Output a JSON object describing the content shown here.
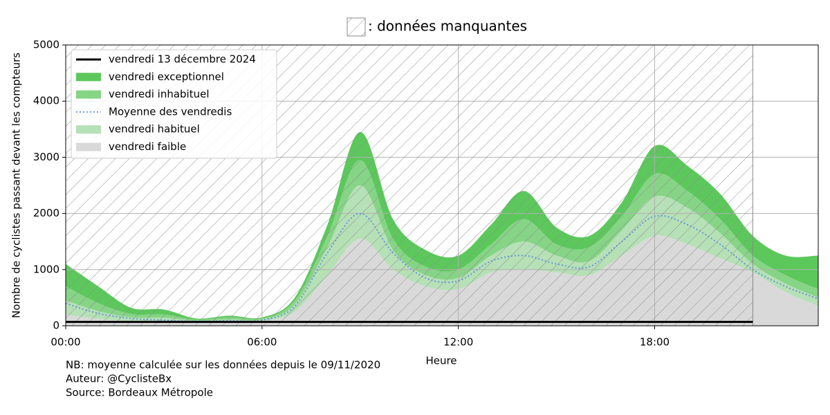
{
  "chart_data": {
    "type": "band",
    "missing": {
      "label": ": données manquantes",
      "x": [
        0,
        21
      ]
    },
    "xlabel": "Heure",
    "ylabel": "Nombre de cyclistes passant devant les compteurs",
    "annotations": [
      "NB: moyenne calculée sur les données depuis le 09/11/2020",
      "Auteur: @CyclisteBx",
      "Source: Bordeaux Métropole"
    ],
    "x": [
      0,
      1,
      2,
      3,
      4,
      5,
      6,
      7,
      8,
      9,
      10,
      11,
      12,
      13,
      14,
      15,
      16,
      17,
      18,
      19,
      20,
      21,
      22,
      23
    ],
    "xlim": [
      0,
      23
    ],
    "xticks": [
      {
        "value": 0,
        "label": "00:00"
      },
      {
        "value": 6,
        "label": "06:00"
      },
      {
        "value": 12,
        "label": "12:00"
      },
      {
        "value": 18,
        "label": "18:00"
      }
    ],
    "ylim": [
      0,
      5000
    ],
    "yticks": [
      0,
      1000,
      2000,
      3000,
      4000,
      5000
    ],
    "grid": true,
    "legend": "upper left",
    "series": [
      {
        "name": "vendredi 13 décembre 2024",
        "style": "line",
        "color": "#000000",
        "x": [
          0,
          21
        ],
        "values": [
          70,
          70
        ]
      },
      {
        "name": "vendredi exceptionnel",
        "style": "band",
        "color": "#5cc85c",
        "values": [
          1100,
          700,
          320,
          290,
          130,
          180,
          150,
          500,
          1800,
          3450,
          1900,
          1350,
          1250,
          1800,
          2400,
          1750,
          1600,
          2200,
          3200,
          2850,
          2350,
          1600,
          1250,
          1250
        ]
      },
      {
        "name": "vendredi inhabituel",
        "style": "band",
        "color": "#86d486",
        "values": [
          700,
          400,
          210,
          200,
          110,
          150,
          130,
          450,
          1600,
          2950,
          1550,
          1050,
          1000,
          1450,
          1900,
          1450,
          1400,
          1950,
          2700,
          2400,
          1900,
          1250,
          900,
          650
        ]
      },
      {
        "name": "Moyenne des vendredis",
        "style": "dotted",
        "color": "#5b8fe0",
        "values": [
          400,
          220,
          130,
          100,
          80,
          90,
          100,
          350,
          1300,
          2000,
          1300,
          850,
          800,
          1150,
          1250,
          1100,
          1050,
          1500,
          1950,
          1800,
          1450,
          1000,
          700,
          480
        ]
      },
      {
        "name": "vendredi habituel",
        "style": "band",
        "color": "#b6e0b6",
        "values": [
          450,
          260,
          150,
          140,
          90,
          110,
          110,
          380,
          1400,
          2500,
          1350,
          900,
          850,
          1250,
          1500,
          1250,
          1150,
          1700,
          2300,
          2100,
          1650,
          1100,
          750,
          500
        ]
      },
      {
        "name": "vendredi faible",
        "style": "band",
        "color": "#d9d9d9",
        "values": [
          200,
          120,
          80,
          70,
          60,
          70,
          80,
          250,
          900,
          1550,
          1000,
          700,
          650,
          950,
          1000,
          950,
          900,
          1250,
          1600,
          1450,
          1200,
          950,
          600,
          350
        ]
      }
    ]
  }
}
